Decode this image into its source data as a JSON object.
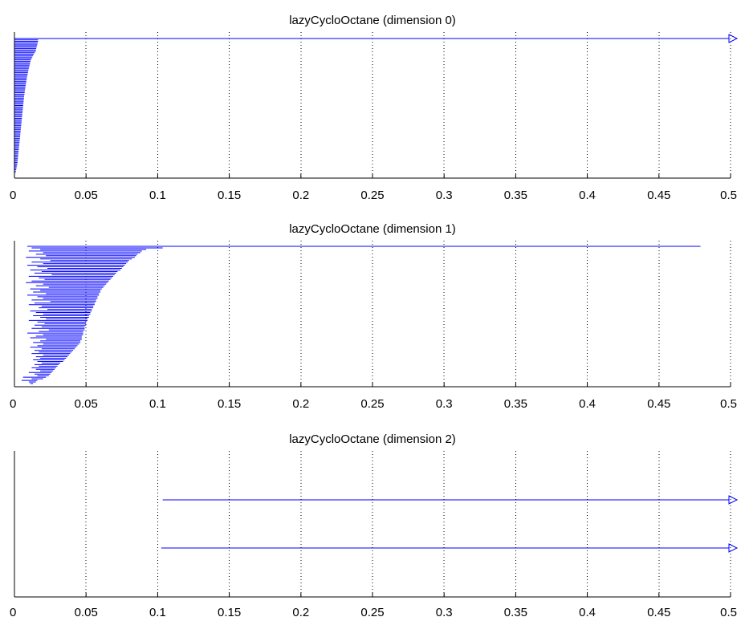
{
  "chart_data": [
    {
      "type": "barcode",
      "title": "lazyCycloOctane (dimension 0)",
      "xlim": [
        0,
        0.5
      ],
      "x_ticks": [
        0,
        0.05,
        0.1,
        0.15,
        0.2,
        0.25,
        0.3,
        0.35,
        0.4,
        0.45,
        0.5
      ],
      "x_tick_labels": [
        "0",
        "0.05",
        "0.1",
        "0.15",
        "0.2",
        "0.25",
        "0.3",
        "0.35",
        "0.4",
        "0.45",
        "0.5"
      ],
      "grid": "vertical dotted",
      "bar_color": "#0000ff",
      "bars": [
        {
          "birth": 0,
          "death": null
        },
        {
          "birth": 0,
          "death": 0.0165
        },
        {
          "birth": 0,
          "death": 0.0165
        },
        {
          "birth": 0,
          "death": 0.0162
        },
        {
          "birth": 0,
          "death": 0.016
        },
        {
          "birth": 0,
          "death": 0.0158
        },
        {
          "birth": 0,
          "death": 0.0155
        },
        {
          "birth": 0,
          "death": 0.0152
        },
        {
          "birth": 0,
          "death": 0.015
        },
        {
          "birth": 0,
          "death": 0.0148
        },
        {
          "birth": 0,
          "death": 0.0142
        },
        {
          "birth": 0,
          "death": 0.0135
        },
        {
          "birth": 0,
          "death": 0.013
        },
        {
          "birth": 0,
          "death": 0.0125
        },
        {
          "birth": 0,
          "death": 0.012
        },
        {
          "birth": 0,
          "death": 0.0115
        },
        {
          "birth": 0,
          "death": 0.0112
        },
        {
          "birth": 0,
          "death": 0.011
        },
        {
          "birth": 0,
          "death": 0.0108
        },
        {
          "birth": 0,
          "death": 0.0105
        },
        {
          "birth": 0,
          "death": 0.0103
        },
        {
          "birth": 0,
          "death": 0.01
        },
        {
          "birth": 0,
          "death": 0.0098
        },
        {
          "birth": 0,
          "death": 0.0096
        },
        {
          "birth": 0,
          "death": 0.0094
        },
        {
          "birth": 0,
          "death": 0.0092
        },
        {
          "birth": 0,
          "death": 0.009
        },
        {
          "birth": 0,
          "death": 0.0088
        },
        {
          "birth": 0,
          "death": 0.0086
        },
        {
          "birth": 0,
          "death": 0.0085
        },
        {
          "birth": 0,
          "death": 0.0083
        },
        {
          "birth": 0,
          "death": 0.0082
        },
        {
          "birth": 0,
          "death": 0.008
        },
        {
          "birth": 0,
          "death": 0.0078
        },
        {
          "birth": 0,
          "death": 0.0077
        },
        {
          "birth": 0,
          "death": 0.0075
        },
        {
          "birth": 0,
          "death": 0.0074
        },
        {
          "birth": 0,
          "death": 0.0072
        },
        {
          "birth": 0,
          "death": 0.0071
        },
        {
          "birth": 0,
          "death": 0.007
        },
        {
          "birth": 0,
          "death": 0.0068
        },
        {
          "birth": 0,
          "death": 0.0067
        },
        {
          "birth": 0,
          "death": 0.0066
        },
        {
          "birth": 0,
          "death": 0.0065
        },
        {
          "birth": 0,
          "death": 0.0064
        },
        {
          "birth": 0,
          "death": 0.0063
        },
        {
          "birth": 0,
          "death": 0.0062
        },
        {
          "birth": 0,
          "death": 0.0061
        },
        {
          "birth": 0,
          "death": 0.006
        },
        {
          "birth": 0,
          "death": 0.0059
        },
        {
          "birth": 0,
          "death": 0.0058
        },
        {
          "birth": 0,
          "death": 0.0057
        },
        {
          "birth": 0,
          "death": 0.0056
        },
        {
          "birth": 0,
          "death": 0.0055
        },
        {
          "birth": 0,
          "death": 0.0054
        },
        {
          "birth": 0,
          "death": 0.0053
        },
        {
          "birth": 0,
          "death": 0.0052
        },
        {
          "birth": 0,
          "death": 0.0051
        },
        {
          "birth": 0,
          "death": 0.005
        },
        {
          "birth": 0,
          "death": 0.0049
        },
        {
          "birth": 0,
          "death": 0.0048
        },
        {
          "birth": 0,
          "death": 0.0047
        },
        {
          "birth": 0,
          "death": 0.0046
        },
        {
          "birth": 0,
          "death": 0.0045
        },
        {
          "birth": 0,
          "death": 0.0044
        },
        {
          "birth": 0,
          "death": 0.0043
        },
        {
          "birth": 0,
          "death": 0.0042
        },
        {
          "birth": 0,
          "death": 0.0041
        },
        {
          "birth": 0,
          "death": 0.004
        },
        {
          "birth": 0,
          "death": 0.0039
        },
        {
          "birth": 0,
          "death": 0.0038
        },
        {
          "birth": 0,
          "death": 0.0037
        },
        {
          "birth": 0,
          "death": 0.0036
        },
        {
          "birth": 0,
          "death": 0.0035
        },
        {
          "birth": 0,
          "death": 0.0034
        },
        {
          "birth": 0,
          "death": 0.0033
        },
        {
          "birth": 0,
          "death": 0.0032
        },
        {
          "birth": 0,
          "death": 0.0031
        },
        {
          "birth": 0,
          "death": 0.003
        },
        {
          "birth": 0,
          "death": 0.0029
        },
        {
          "birth": 0,
          "death": 0.0028
        },
        {
          "birth": 0,
          "death": 0.0027
        },
        {
          "birth": 0,
          "death": 0.0026
        },
        {
          "birth": 0,
          "death": 0.0025
        },
        {
          "birth": 0,
          "death": 0.0024
        },
        {
          "birth": 0,
          "death": 0.0023
        },
        {
          "birth": 0,
          "death": 0.0022
        },
        {
          "birth": 0,
          "death": 0.0021
        },
        {
          "birth": 0,
          "death": 0.002
        },
        {
          "birth": 0,
          "death": 0.0018
        },
        {
          "birth": 0,
          "death": 0.0016
        },
        {
          "birth": 0,
          "death": 0.0014
        },
        {
          "birth": 0,
          "death": 0.0012
        },
        {
          "birth": 0,
          "death": 0.001
        },
        {
          "birth": 0,
          "death": 0.0008
        }
      ]
    },
    {
      "type": "barcode",
      "title": "lazyCycloOctane (dimension 1)",
      "xlim": [
        0,
        0.5
      ],
      "x_ticks": [
        0,
        0.05,
        0.1,
        0.15,
        0.2,
        0.25,
        0.3,
        0.35,
        0.4,
        0.45,
        0.5
      ],
      "x_tick_labels": [
        "0",
        "0.05",
        "0.1",
        "0.15",
        "0.2",
        "0.25",
        "0.3",
        "0.35",
        "0.4",
        "0.45",
        "0.5"
      ],
      "grid": "vertical dotted",
      "bar_color": "#0000ff",
      "bars": [
        {
          "birth": 0.009,
          "death": 0.479
        },
        {
          "birth": 0.012,
          "death": 0.1035
        },
        {
          "birth": 0.018,
          "death": 0.092
        },
        {
          "birth": 0.01,
          "death": 0.089
        },
        {
          "birth": 0.02,
          "death": 0.088
        },
        {
          "birth": 0.015,
          "death": 0.086
        },
        {
          "birth": 0.022,
          "death": 0.085
        },
        {
          "birth": 0.008,
          "death": 0.084
        },
        {
          "birth": 0.018,
          "death": 0.082
        },
        {
          "birth": 0.025,
          "death": 0.08
        },
        {
          "birth": 0.012,
          "death": 0.079
        },
        {
          "birth": 0.02,
          "death": 0.078
        },
        {
          "birth": 0.009,
          "death": 0.077
        },
        {
          "birth": 0.016,
          "death": 0.076
        },
        {
          "birth": 0.023,
          "death": 0.075
        },
        {
          "birth": 0.011,
          "death": 0.074
        },
        {
          "birth": 0.019,
          "death": 0.072
        },
        {
          "birth": 0.014,
          "death": 0.071
        },
        {
          "birth": 0.026,
          "death": 0.07
        },
        {
          "birth": 0.01,
          "death": 0.069
        },
        {
          "birth": 0.017,
          "death": 0.068
        },
        {
          "birth": 0.021,
          "death": 0.067
        },
        {
          "birth": 0.012,
          "death": 0.066
        },
        {
          "birth": 0.008,
          "death": 0.065
        },
        {
          "birth": 0.02,
          "death": 0.064
        },
        {
          "birth": 0.015,
          "death": 0.063
        },
        {
          "birth": 0.024,
          "death": 0.062
        },
        {
          "birth": 0.011,
          "death": 0.061
        },
        {
          "birth": 0.018,
          "death": 0.06
        },
        {
          "birth": 0.013,
          "death": 0.06
        },
        {
          "birth": 0.022,
          "death": 0.059
        },
        {
          "birth": 0.009,
          "death": 0.059
        },
        {
          "birth": 0.016,
          "death": 0.058
        },
        {
          "birth": 0.02,
          "death": 0.058
        },
        {
          "birth": 0.012,
          "death": 0.057
        },
        {
          "birth": 0.025,
          "death": 0.057
        },
        {
          "birth": 0.014,
          "death": 0.056
        },
        {
          "birth": 0.01,
          "death": 0.056
        },
        {
          "birth": 0.019,
          "death": 0.055
        },
        {
          "birth": 0.017,
          "death": 0.055
        },
        {
          "birth": 0.023,
          "death": 0.054
        },
        {
          "birth": 0.011,
          "death": 0.054
        },
        {
          "birth": 0.015,
          "death": 0.053
        },
        {
          "birth": 0.02,
          "death": 0.053
        },
        {
          "birth": 0.013,
          "death": 0.052
        },
        {
          "birth": 0.018,
          "death": 0.052
        },
        {
          "birth": 0.022,
          "death": 0.051
        },
        {
          "birth": 0.01,
          "death": 0.051
        },
        {
          "birth": 0.016,
          "death": 0.05
        },
        {
          "birth": 0.021,
          "death": 0.05
        },
        {
          "birth": 0.014,
          "death": 0.05
        },
        {
          "birth": 0.019,
          "death": 0.049
        },
        {
          "birth": 0.012,
          "death": 0.049
        },
        {
          "birth": 0.024,
          "death": 0.049
        },
        {
          "birth": 0.017,
          "death": 0.048
        },
        {
          "birth": 0.009,
          "death": 0.048
        },
        {
          "birth": 0.02,
          "death": 0.048
        },
        {
          "birth": 0.015,
          "death": 0.047
        },
        {
          "birth": 0.011,
          "death": 0.047
        },
        {
          "birth": 0.022,
          "death": 0.047
        },
        {
          "birth": 0.018,
          "death": 0.046
        },
        {
          "birth": 0.013,
          "death": 0.046
        },
        {
          "birth": 0.02,
          "death": 0.045
        },
        {
          "birth": 0.016,
          "death": 0.044
        },
        {
          "birth": 0.011,
          "death": 0.043
        },
        {
          "birth": 0.019,
          "death": 0.042
        },
        {
          "birth": 0.014,
          "death": 0.041
        },
        {
          "birth": 0.017,
          "death": 0.04
        },
        {
          "birth": 0.012,
          "death": 0.039
        },
        {
          "birth": 0.02,
          "death": 0.038
        },
        {
          "birth": 0.015,
          "death": 0.037
        },
        {
          "birth": 0.018,
          "death": 0.036
        },
        {
          "birth": 0.013,
          "death": 0.035
        },
        {
          "birth": 0.016,
          "death": 0.034
        },
        {
          "birth": 0.019,
          "death": 0.032
        },
        {
          "birth": 0.014,
          "death": 0.031
        },
        {
          "birth": 0.017,
          "death": 0.03
        },
        {
          "birth": 0.012,
          "death": 0.029
        },
        {
          "birth": 0.015,
          "death": 0.028
        },
        {
          "birth": 0.018,
          "death": 0.027
        },
        {
          "birth": 0.01,
          "death": 0.026
        },
        {
          "birth": 0.014,
          "death": 0.025
        },
        {
          "birth": 0.016,
          "death": 0.024
        },
        {
          "birth": 0.006,
          "death": 0.022
        },
        {
          "birth": 0.012,
          "death": 0.02
        },
        {
          "birth": 0.005,
          "death": 0.016
        },
        {
          "birth": 0.01,
          "death": 0.015
        },
        {
          "birth": 0.011,
          "death": 0.013
        }
      ]
    },
    {
      "type": "barcode",
      "title": "lazyCycloOctane (dimension 2)",
      "xlim": [
        0,
        0.5
      ],
      "x_ticks": [
        0,
        0.05,
        0.1,
        0.15,
        0.2,
        0.25,
        0.3,
        0.35,
        0.4,
        0.45,
        0.5
      ],
      "x_tick_labels": [
        "0",
        "0.05",
        "0.1",
        "0.15",
        "0.2",
        "0.25",
        "0.3",
        "0.35",
        "0.4",
        "0.45",
        "0.5"
      ],
      "grid": "vertical dotted",
      "bar_color": "#0000ff",
      "bars": [
        {
          "birth": 0.1035,
          "death": null
        },
        {
          "birth": 0.1025,
          "death": null
        }
      ]
    }
  ]
}
